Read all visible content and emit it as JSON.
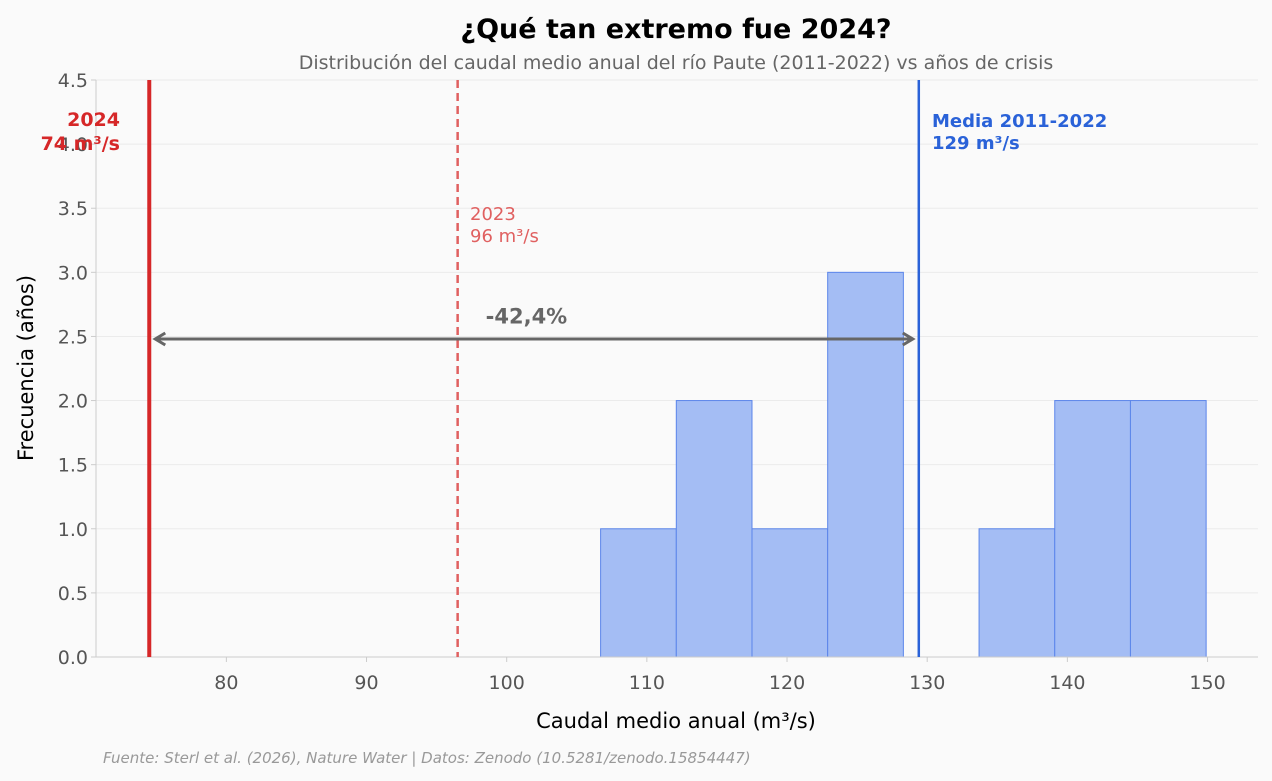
{
  "chart_data": {
    "type": "bar",
    "title": "¿Qué tan extremo fue 2024?",
    "subtitle": "Distribución del caudal medio anual del río Paute (2011-2022) vs años de crisis",
    "xlabel": "Caudal medio anual (m³/s)",
    "ylabel": "Frecuencia (años)",
    "xlim": [
      70.7,
      153.6
    ],
    "ylim": [
      0,
      4.5
    ],
    "xticks": [
      80,
      90,
      100,
      110,
      120,
      130,
      140,
      150
    ],
    "yticks": [
      0.0,
      0.5,
      1.0,
      1.5,
      2.0,
      2.5,
      3.0,
      3.5,
      4.0,
      4.5
    ],
    "grid": "horizontal",
    "bin_edges": [
      106.7,
      112.1,
      117.5,
      122.9,
      128.3,
      133.7,
      139.1,
      144.5,
      149.9
    ],
    "values": [
      1,
      2,
      1,
      3,
      0,
      1,
      2,
      2
    ],
    "colors": {
      "bars": "#a4bdf4",
      "bar_edge": "#5b85ea",
      "line_2024": "#d62728",
      "line_2023": "#e06060",
      "line_mean": "#2a62d8",
      "arrow": "#666666"
    },
    "annotations": {
      "line_2024": {
        "x": 74.5,
        "line1": "2024",
        "line2": "74 m³/s"
      },
      "line_2023": {
        "x": 96.5,
        "line1": "2023",
        "line2": "96 m³/s"
      },
      "line_mean": {
        "x": 129.4,
        "line1": "Media 2011-2022",
        "line2": "129 m³/s"
      },
      "arrow": {
        "from": 74.5,
        "to": 129.4,
        "y": 2.48,
        "label": "-42,4%",
        "label_x": 98.5,
        "label_y": 2.6
      }
    },
    "source": "Fuente: Sterl et al. (2026), Nature Water | Datos: Zenodo (10.5281/zenodo.15854447)"
  }
}
